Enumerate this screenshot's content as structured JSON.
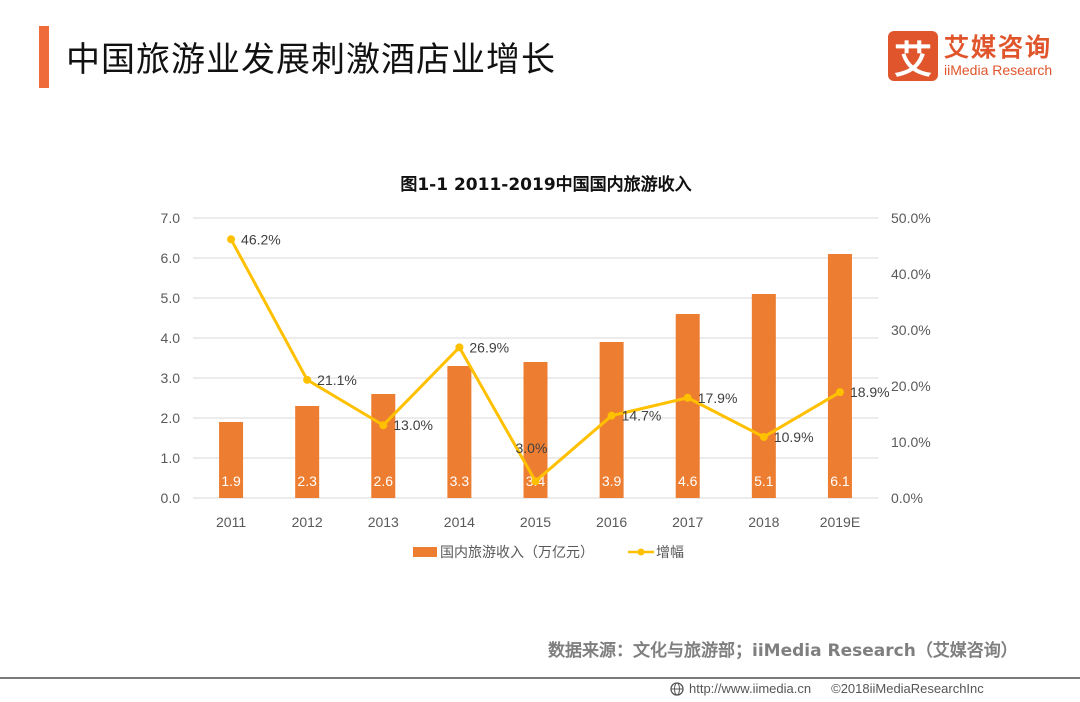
{
  "header": {
    "title": "中国旅游业发展刺激酒店业增长",
    "logo_mark": "艾",
    "logo_cn": "艾媒咨询",
    "logo_en": "iiMedia Research",
    "accent_color": "#ef6c3a",
    "logo_color": "#e0552b"
  },
  "chart_data": {
    "type": "bar",
    "title": "图1-1 2011-2019中国国内旅游收入",
    "categories": [
      "2011",
      "2012",
      "2013",
      "2014",
      "2015",
      "2016",
      "2017",
      "2018",
      "2019E"
    ],
    "series": [
      {
        "name": "国内旅游收入（万亿元）",
        "type": "bar",
        "axis": "left",
        "color": "#ed7d31",
        "values": [
          1.9,
          2.3,
          2.6,
          3.3,
          3.4,
          3.9,
          4.6,
          5.1,
          6.1
        ],
        "labels": [
          "1.9",
          "2.3",
          "2.6",
          "3.3",
          "3.4",
          "3.9",
          "4.6",
          "5.1",
          "6.1"
        ]
      },
      {
        "name": "增幅",
        "type": "line",
        "axis": "right",
        "color": "#ffc000",
        "values": [
          46.2,
          21.1,
          13.0,
          26.9,
          3.0,
          14.7,
          17.9,
          10.9,
          18.9
        ],
        "labels": [
          "46.2%",
          "21.1%",
          "13.0%",
          "26.9%",
          "3.0%",
          "14.7%",
          "17.9%",
          "10.9%",
          "18.9%"
        ]
      }
    ],
    "ylim_left": [
      0,
      7
    ],
    "yticks_left": [
      "0.0",
      "1.0",
      "2.0",
      "3.0",
      "4.0",
      "5.0",
      "6.0",
      "7.0"
    ],
    "ylim_right": [
      0,
      50
    ],
    "yticks_right": [
      "0.0%",
      "10.0%",
      "20.0%",
      "30.0%",
      "40.0%",
      "50.0%"
    ],
    "grid": true,
    "legend": "bottom",
    "xlabel": "",
    "ylabel": ""
  },
  "footer": {
    "source": "数据来源：文化与旅游部；iiMedia Research（艾媒咨询）",
    "url": "http://www.iimedia.cn",
    "copyright": "©2018iiMediaResearchInc"
  }
}
